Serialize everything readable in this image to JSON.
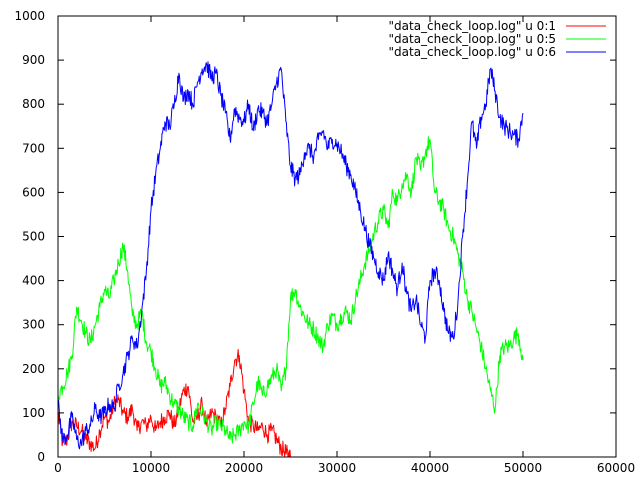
{
  "chart_data": {
    "type": "line",
    "title": "",
    "xlabel": "",
    "ylabel": "",
    "xlim": [
      0,
      60000
    ],
    "ylim": [
      0,
      1000
    ],
    "x_ticks": [
      0,
      10000,
      20000,
      30000,
      40000,
      50000,
      60000
    ],
    "y_ticks": [
      0,
      100,
      200,
      300,
      400,
      500,
      600,
      700,
      800,
      900,
      1000
    ],
    "grid": false,
    "legend_position": "top-right",
    "series": [
      {
        "name": "\"data_check_loop.log\" u 0:1",
        "color": "#ff0000",
        "x": [
          0,
          500,
          1000,
          1500,
          2000,
          2500,
          3000,
          3500,
          4000,
          4500,
          5000,
          5500,
          6000,
          6500,
          7000,
          7500,
          8000,
          8500,
          9000,
          9500,
          10000,
          10500,
          11000,
          11500,
          12000,
          12500,
          13000,
          13500,
          14000,
          14500,
          15000,
          15500,
          16000,
          16500,
          17000,
          17500,
          18000,
          18500,
          19000,
          19500,
          20000,
          20500,
          21000,
          21500,
          22000,
          22500,
          23000,
          23500,
          24000,
          24500,
          24800,
          25000,
          30000,
          40000,
          50000
        ],
        "y": [
          100,
          30,
          40,
          80,
          70,
          60,
          40,
          30,
          20,
          60,
          90,
          80,
          120,
          130,
          100,
          90,
          110,
          60,
          80,
          70,
          90,
          60,
          80,
          90,
          100,
          70,
          110,
          150,
          160,
          80,
          90,
          120,
          70,
          100,
          90,
          70,
          110,
          160,
          220,
          230,
          150,
          80,
          70,
          60,
          70,
          50,
          60,
          40,
          20,
          10,
          3,
          0,
          0,
          0,
          0
        ]
      },
      {
        "name": "\"data_check_loop.log\" u 0:5",
        "color": "#00ff00",
        "x": [
          0,
          500,
          1000,
          1500,
          2000,
          2500,
          3000,
          3500,
          4000,
          4500,
          5000,
          5500,
          6000,
          6500,
          7000,
          7500,
          8000,
          8500,
          9000,
          9500,
          10000,
          10500,
          11000,
          11500,
          12000,
          12500,
          13000,
          13500,
          14000,
          14500,
          15000,
          15500,
          16000,
          16500,
          17000,
          17500,
          18000,
          18500,
          19000,
          19500,
          20000,
          20500,
          21000,
          21500,
          22000,
          22500,
          23000,
          23500,
          24000,
          24500,
          25000,
          25500,
          26000,
          26500,
          27000,
          27500,
          28000,
          28500,
          29000,
          29500,
          30000,
          30500,
          31000,
          31500,
          32000,
          32500,
          33000,
          33500,
          34000,
          34500,
          35000,
          35500,
          36000,
          36500,
          37000,
          37500,
          38000,
          38500,
          39000,
          39500,
          40000,
          40500,
          41000,
          41500,
          42000,
          42500,
          43000,
          43500,
          44000,
          44500,
          45000,
          45500,
          46000,
          46500,
          47000,
          47500,
          48000,
          48500,
          49000,
          49500,
          50000
        ],
        "y": [
          140,
          160,
          190,
          230,
          340,
          310,
          280,
          260,
          300,
          340,
          380,
          360,
          400,
          440,
          480,
          420,
          320,
          300,
          330,
          260,
          240,
          200,
          160,
          170,
          140,
          120,
          110,
          90,
          80,
          70,
          120,
          100,
          80,
          60,
          80,
          70,
          60,
          40,
          50,
          60,
          80,
          70,
          120,
          170,
          140,
          160,
          180,
          200,
          150,
          200,
          360,
          380,
          340,
          320,
          300,
          290,
          270,
          250,
          300,
          320,
          300,
          320,
          330,
          310,
          360,
          400,
          440,
          470,
          510,
          540,
          560,
          520,
          600,
          580,
          620,
          640,
          600,
          680,
          650,
          690,
          720,
          600,
          580,
          560,
          520,
          500,
          460,
          420,
          360,
          330,
          290,
          250,
          200,
          150,
          110,
          230,
          250,
          250,
          270,
          280,
          220
        ]
      },
      {
        "name": "\"data_check_loop.log\" u 0:6",
        "color": "#0000ff",
        "x": [
          0,
          500,
          1000,
          1500,
          2000,
          2500,
          3000,
          3500,
          4000,
          4500,
          5000,
          5500,
          6000,
          6500,
          7000,
          7500,
          8000,
          8500,
          9000,
          9500,
          10000,
          10500,
          11000,
          11500,
          12000,
          12500,
          13000,
          13500,
          14000,
          14500,
          15000,
          15500,
          16000,
          16500,
          17000,
          17500,
          18000,
          18500,
          19000,
          19500,
          20000,
          20500,
          21000,
          21500,
          22000,
          22500,
          23000,
          23500,
          24000,
          24500,
          25000,
          25500,
          26000,
          26500,
          27000,
          27500,
          28000,
          28500,
          29000,
          29500,
          30000,
          30500,
          31000,
          31500,
          32000,
          32500,
          33000,
          33500,
          34000,
          34500,
          35000,
          35500,
          36000,
          36500,
          37000,
          37500,
          38000,
          38500,
          39000,
          39500,
          40000,
          40500,
          41000,
          41500,
          42000,
          42500,
          43000,
          43500,
          44000,
          44500,
          45000,
          45500,
          46000,
          46500,
          47000,
          47500,
          48000,
          48500,
          49000,
          49500,
          50000
        ],
        "y": [
          120,
          40,
          50,
          90,
          40,
          30,
          60,
          70,
          110,
          90,
          100,
          120,
          110,
          160,
          190,
          230,
          270,
          250,
          330,
          420,
          560,
          640,
          700,
          760,
          750,
          800,
          870,
          810,
          830,
          800,
          850,
          880,
          890,
          860,
          870,
          820,
          780,
          720,
          790,
          770,
          760,
          800,
          740,
          790,
          780,
          760,
          800,
          850,
          880,
          760,
          660,
          630,
          640,
          690,
          700,
          680,
          720,
          740,
          700,
          720,
          710,
          690,
          660,
          640,
          600,
          560,
          520,
          480,
          450,
          420,
          400,
          460,
          420,
          380,
          440,
          370,
          330,
          360,
          300,
          270,
          400,
          420,
          400,
          330,
          280,
          270,
          350,
          500,
          620,
          760,
          700,
          770,
          800,
          880,
          830,
          770,
          750,
          740,
          730,
          720,
          780
        ]
      }
    ]
  }
}
